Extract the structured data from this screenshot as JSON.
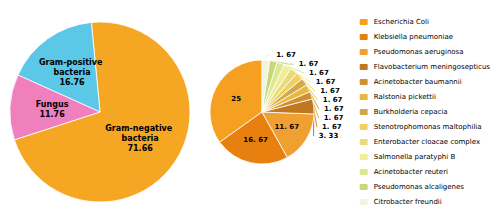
{
  "chart_data": [
    {
      "type": "pie",
      "categories": [
        "Gram-negative bacteria",
        "Gram-positive bacteria",
        "Fungus"
      ],
      "values": [
        71.66,
        16.76,
        11.76
      ],
      "colors": [
        "#F5A623",
        "#5BC8E8",
        "#F07FBE"
      ],
      "data_labels": true
    },
    {
      "type": "pie",
      "categories": [
        "Escherichia Coli",
        "Klebsiella pneumoniae",
        "Pseudomonas aeruginosa",
        "Flavobacterium meningosepticus",
        "Acinetobacter baumannii",
        "Ralstonia pickettii",
        "Burkholderia cepacia",
        "Stenotrophomonas maltophilia",
        "Enterobacter cloacae complex",
        "Salmonella paratyphi B",
        "Acinetobacter reuteri",
        "Pseudomonas alcaligenes",
        "Citrobacter freundii"
      ],
      "values": [
        25,
        16.67,
        11.67,
        3.33,
        1.67,
        1.67,
        1.67,
        1.67,
        1.67,
        1.67,
        1.67,
        1.67,
        1.67
      ],
      "value_labels": [
        "25",
        "16. 67",
        "11. 67",
        "3. 33",
        "1. 67",
        "1. 67",
        "1. 67",
        "1. 67",
        "1. 67",
        "1. 67",
        "1. 67",
        "1. 67",
        "1. 67"
      ],
      "colors": [
        "#F5A020",
        "#E88010",
        "#F0A030",
        "#C07820",
        "#D09030",
        "#E8B840",
        "#D4A848",
        "#F0D060",
        "#E8DC78",
        "#F0EC98",
        "#DCE890",
        "#C8D878",
        "#F4F4DC"
      ],
      "data_labels": true,
      "legend": "right"
    }
  ]
}
